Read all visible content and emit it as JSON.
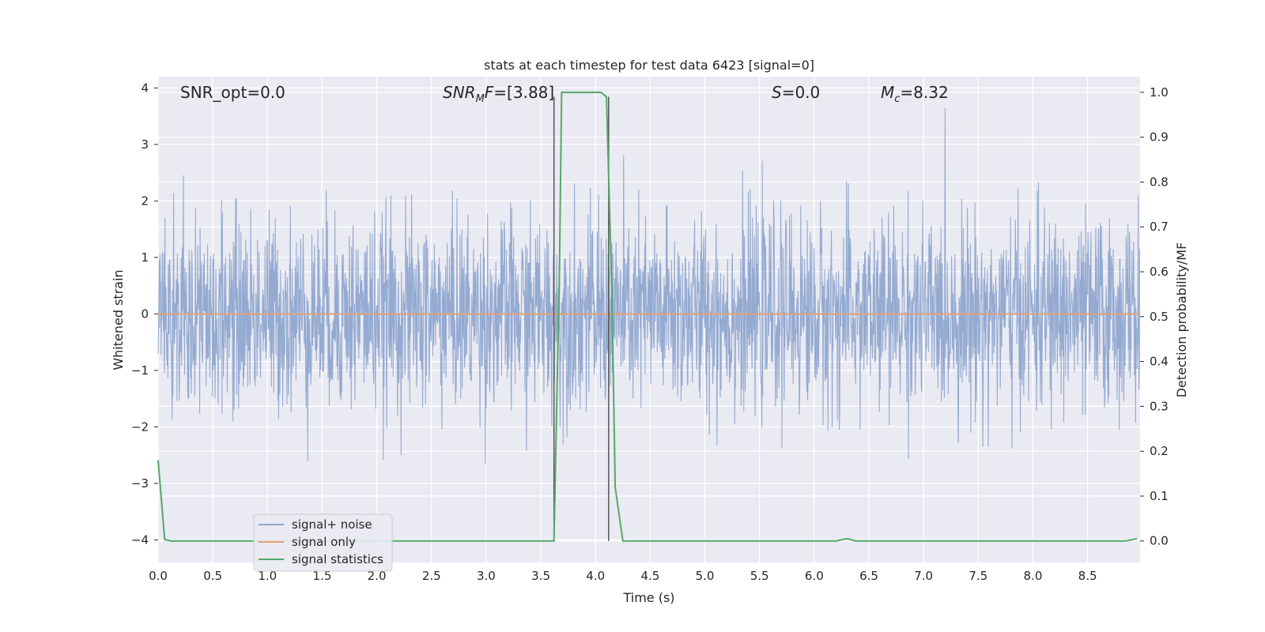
{
  "chart_data": {
    "type": "line",
    "title": "stats at each timestep for test data 6423 [signal=0]",
    "xlabel": "Time (s)",
    "ylabel_left": "Whitened strain",
    "ylabel_right": "Detection probability/MF",
    "xlim": [
      0.0,
      8.98
    ],
    "ylim_left": [
      -4.4,
      4.2
    ],
    "ylim_right": [
      -0.048,
      1.035
    ],
    "x_ticks": [
      "0.0",
      "0.5",
      "1.0",
      "1.5",
      "2.0",
      "2.5",
      "3.0",
      "3.5",
      "4.0",
      "4.5",
      "5.0",
      "5.5",
      "6.0",
      "6.5",
      "7.0",
      "7.5",
      "8.0",
      "8.5"
    ],
    "y_left_ticks": [
      "4",
      "3",
      "2",
      "1",
      "0",
      "−1",
      "−2",
      "−3",
      "−4"
    ],
    "y_right_ticks": [
      "1.0",
      "0.9",
      "0.8",
      "0.7",
      "0.6",
      "0.5",
      "0.4",
      "0.3",
      "0.2",
      "0.1",
      "0.0"
    ],
    "grid": true,
    "annotations": {
      "snr_opt": "SNR_opt=0.0",
      "snr_mf_main": "SNR",
      "snr_mf_sub": "M",
      "snr_mf_rest": "F",
      "snr_mf_value": "=[3.88]",
      "s_main": "S",
      "s_value": "=0.0",
      "mc_main": "M",
      "mc_sub": "c",
      "mc_value": "=8.32"
    },
    "legend": {
      "placement": "lower-left",
      "entries": [
        "signal+ noise",
        "signal only",
        "signal statistics"
      ]
    },
    "series": [
      {
        "name": "signal+ noise",
        "axis": "left",
        "color": "#8fa6cf",
        "description_values": "whitened noise, roughly uniform band between about -2 and 2 with spikes near ±3"
      },
      {
        "name": "signal only",
        "axis": "left",
        "color": "#e1a27c",
        "x": [
          0.0,
          8.98
        ],
        "y": [
          0.0,
          0.0
        ]
      },
      {
        "name": "signal statistics",
        "axis": "right",
        "color": "#55a868",
        "x": [
          0.0,
          0.06,
          0.12,
          3.55,
          3.62,
          3.67,
          3.69,
          4.05,
          4.1,
          4.15,
          4.18,
          4.25,
          6.2,
          6.3,
          6.38,
          8.85,
          8.95
        ],
        "y": [
          0.18,
          0.003,
          0.0,
          0.0,
          0.0,
          0.6,
          1.0,
          1.0,
          0.99,
          0.55,
          0.12,
          0.0,
          0.0,
          0.005,
          0.0,
          0.0,
          0.005
        ]
      }
    ],
    "vertical_markers": [
      {
        "x": 3.62,
        "color": "#555555"
      },
      {
        "x": 4.12,
        "color": "#555555"
      }
    ]
  }
}
